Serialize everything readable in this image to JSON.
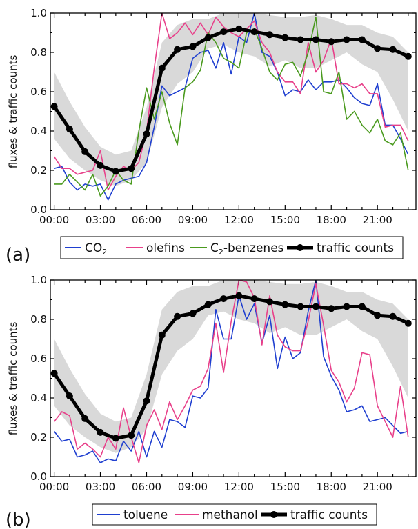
{
  "chart_data": [
    {
      "panel": "(a)",
      "type": "line",
      "ylabel": "fluxes & traffic counts",
      "ylim": [
        0,
        1.0
      ],
      "xlim": [
        -0.25,
        23.5
      ],
      "x_ticks": [
        "00:00",
        "03:00",
        "06:00",
        "09:00",
        "12:00",
        "15:00",
        "18:00",
        "21:00"
      ],
      "y_ticks": [
        "0.0",
        "0.2",
        "0.4",
        "0.6",
        "0.8",
        "1.0"
      ],
      "legend": [
        "CO",
        "olefins",
        "C",
        "-benzenes",
        "traffic counts"
      ],
      "legend_subscript": "2",
      "band": {
        "x": [
          0,
          1,
          2,
          3,
          4,
          5,
          6,
          7,
          8,
          9,
          10,
          11,
          12,
          13,
          14,
          15,
          16,
          17,
          18,
          19,
          20,
          21,
          22,
          23
        ],
        "upper": [
          0.7,
          0.55,
          0.42,
          0.32,
          0.28,
          0.3,
          0.52,
          0.85,
          0.94,
          0.97,
          0.97,
          1.0,
          1.0,
          1.0,
          0.99,
          0.98,
          0.98,
          0.99,
          0.97,
          0.94,
          0.94,
          0.9,
          0.88,
          0.8
        ],
        "lower": [
          0.36,
          0.26,
          0.2,
          0.15,
          0.12,
          0.15,
          0.24,
          0.52,
          0.64,
          0.7,
          0.82,
          0.84,
          0.8,
          0.78,
          0.73,
          0.76,
          0.72,
          0.72,
          0.76,
          0.8,
          0.74,
          0.7,
          0.56,
          0.4
        ]
      },
      "series": [
        {
          "name": "traffic counts",
          "color": "#000000",
          "style": "thick-markers",
          "x": [
            0,
            1,
            2,
            3,
            4,
            5,
            6,
            7,
            8,
            9,
            10,
            11,
            12,
            13,
            14,
            15,
            16,
            17,
            18,
            19,
            20,
            21,
            22,
            23
          ],
          "values": [
            0.525,
            0.41,
            0.295,
            0.225,
            0.195,
            0.21,
            0.385,
            0.72,
            0.815,
            0.83,
            0.875,
            0.905,
            0.92,
            0.905,
            0.89,
            0.875,
            0.865,
            0.865,
            0.855,
            0.865,
            0.865,
            0.82,
            0.815,
            0.78
          ]
        },
        {
          "name": "CO2",
          "color": "#1f3fd0",
          "style": "line",
          "x": [
            0,
            0.5,
            1,
            1.5,
            2,
            2.5,
            3,
            3.5,
            4,
            4.5,
            5,
            5.5,
            6,
            6.5,
            7,
            7.5,
            8,
            8.5,
            9,
            9.5,
            10,
            10.5,
            11,
            11.5,
            12,
            12.5,
            13,
            13.5,
            14,
            14.5,
            15,
            15.5,
            16,
            16.5,
            17,
            17.5,
            18,
            18.5,
            19,
            19.5,
            20,
            20.5,
            21,
            21.5,
            22,
            22.5,
            23
          ],
          "values": [
            0.21,
            0.22,
            0.14,
            0.1,
            0.13,
            0.12,
            0.13,
            0.05,
            0.13,
            0.15,
            0.16,
            0.17,
            0.24,
            0.42,
            0.63,
            0.58,
            0.6,
            0.62,
            0.77,
            0.8,
            0.81,
            0.72,
            0.85,
            0.69,
            0.88,
            0.85,
            1.0,
            0.8,
            0.78,
            0.7,
            0.58,
            0.61,
            0.6,
            0.66,
            0.61,
            0.65,
            0.65,
            0.66,
            0.62,
            0.57,
            0.54,
            0.53,
            0.64,
            0.43,
            0.43,
            0.36,
            0.28
          ]
        },
        {
          "name": "olefins",
          "color": "#e8408a",
          "style": "line",
          "x": [
            0,
            0.5,
            1,
            1.5,
            2,
            2.5,
            3,
            3.5,
            4,
            4.5,
            5,
            5.5,
            6,
            6.5,
            7,
            7.5,
            8,
            8.5,
            9,
            9.5,
            10,
            10.5,
            11,
            11.5,
            12,
            12.5,
            13,
            13.5,
            14,
            14.5,
            15,
            15.5,
            16,
            16.5,
            17,
            17.5,
            18,
            18.5,
            19,
            19.5,
            20,
            20.5,
            21,
            21.5,
            22,
            22.5,
            23
          ],
          "values": [
            0.27,
            0.21,
            0.21,
            0.18,
            0.19,
            0.2,
            0.3,
            0.1,
            0.17,
            0.22,
            0.2,
            0.24,
            0.4,
            0.72,
            1.0,
            0.87,
            0.9,
            0.95,
            0.89,
            0.95,
            0.89,
            0.98,
            0.93,
            0.9,
            0.88,
            0.92,
            0.96,
            0.85,
            0.8,
            0.7,
            0.65,
            0.65,
            0.59,
            0.85,
            0.7,
            0.76,
            0.87,
            0.64,
            0.64,
            0.62,
            0.64,
            0.59,
            0.59,
            0.42,
            0.43,
            0.43,
            0.35
          ]
        },
        {
          "name": "C2-benzenes",
          "color": "#4a9a1e",
          "style": "line",
          "x": [
            0,
            0.5,
            1,
            1.5,
            2,
            2.5,
            3,
            3.5,
            4,
            4.5,
            5,
            5.5,
            6,
            6.5,
            7,
            7.5,
            8,
            8.5,
            9,
            9.5,
            10,
            10.5,
            11,
            11.5,
            12,
            12.5,
            13,
            13.5,
            14,
            14.5,
            15,
            15.5,
            16,
            16.5,
            17,
            17.5,
            18,
            18.5,
            19,
            19.5,
            20,
            20.5,
            21,
            21.5,
            22,
            22.5,
            23
          ],
          "values": [
            0.13,
            0.13,
            0.18,
            0.14,
            0.1,
            0.18,
            0.07,
            0.12,
            0.2,
            0.15,
            0.13,
            0.4,
            0.62,
            0.46,
            0.6,
            0.44,
            0.33,
            0.62,
            0.65,
            0.71,
            0.9,
            0.85,
            0.77,
            0.75,
            0.72,
            0.9,
            0.92,
            0.82,
            0.7,
            0.66,
            0.74,
            0.75,
            0.68,
            0.8,
            0.98,
            0.6,
            0.59,
            0.7,
            0.46,
            0.5,
            0.43,
            0.39,
            0.46,
            0.35,
            0.33,
            0.39,
            0.2
          ]
        }
      ]
    },
    {
      "panel": "(b)",
      "type": "line",
      "ylabel": "fluxes & traffic counts",
      "ylim": [
        0,
        1.0
      ],
      "xlim": [
        -0.25,
        23.5
      ],
      "x_ticks": [
        "00:00",
        "03:00",
        "06:00",
        "09:00",
        "12:00",
        "15:00",
        "18:00",
        "21:00"
      ],
      "y_ticks": [
        "0.0",
        "0.2",
        "0.4",
        "0.6",
        "0.8",
        "1.0"
      ],
      "legend": [
        "toluene",
        "methanol",
        "traffic counts"
      ],
      "band": {
        "x": [
          0,
          1,
          2,
          3,
          4,
          5,
          6,
          7,
          8,
          9,
          10,
          11,
          12,
          13,
          14,
          15,
          16,
          17,
          18,
          19,
          20,
          21,
          22,
          23
        ],
        "upper": [
          0.7,
          0.55,
          0.42,
          0.32,
          0.28,
          0.3,
          0.52,
          0.85,
          0.94,
          0.97,
          0.97,
          1.0,
          1.0,
          1.0,
          0.99,
          0.98,
          0.98,
          0.99,
          0.97,
          0.94,
          0.94,
          0.9,
          0.88,
          0.8
        ],
        "lower": [
          0.36,
          0.26,
          0.2,
          0.15,
          0.12,
          0.15,
          0.24,
          0.52,
          0.64,
          0.7,
          0.82,
          0.84,
          0.8,
          0.78,
          0.73,
          0.76,
          0.72,
          0.72,
          0.76,
          0.8,
          0.74,
          0.7,
          0.56,
          0.4
        ]
      },
      "series": [
        {
          "name": "traffic counts",
          "color": "#000000",
          "style": "thick-markers",
          "x": [
            0,
            1,
            2,
            3,
            4,
            5,
            6,
            7,
            8,
            9,
            10,
            11,
            12,
            13,
            14,
            15,
            16,
            17,
            18,
            19,
            20,
            21,
            22,
            23
          ],
          "values": [
            0.525,
            0.41,
            0.295,
            0.225,
            0.195,
            0.21,
            0.385,
            0.72,
            0.815,
            0.83,
            0.875,
            0.905,
            0.92,
            0.905,
            0.89,
            0.875,
            0.865,
            0.865,
            0.855,
            0.865,
            0.865,
            0.82,
            0.815,
            0.78
          ]
        },
        {
          "name": "toluene",
          "color": "#1f3fd0",
          "style": "line",
          "x": [
            0,
            0.5,
            1,
            1.5,
            2,
            2.5,
            3,
            3.5,
            4,
            4.5,
            5,
            5.5,
            6,
            6.5,
            7,
            7.5,
            8,
            8.5,
            9,
            9.5,
            10,
            10.5,
            11,
            11.5,
            12,
            12.5,
            13,
            13.5,
            14,
            14.5,
            15,
            15.5,
            16,
            16.5,
            17,
            17.5,
            18,
            18.5,
            19,
            19.5,
            20,
            20.5,
            21,
            21.5,
            22,
            22.5,
            23
          ],
          "values": [
            0.23,
            0.18,
            0.19,
            0.1,
            0.11,
            0.13,
            0.07,
            0.09,
            0.08,
            0.18,
            0.13,
            0.23,
            0.1,
            0.23,
            0.15,
            0.29,
            0.28,
            0.25,
            0.41,
            0.4,
            0.45,
            0.85,
            0.7,
            0.7,
            0.92,
            0.8,
            0.88,
            0.68,
            0.82,
            0.55,
            0.71,
            0.6,
            0.63,
            0.84,
            1.0,
            0.61,
            0.51,
            0.44,
            0.33,
            0.34,
            0.36,
            0.28,
            0.29,
            0.3,
            0.26,
            0.22,
            0.23
          ]
        },
        {
          "name": "methanol",
          "color": "#e8408a",
          "style": "line",
          "x": [
            0,
            0.5,
            1,
            1.5,
            2,
            2.5,
            3,
            3.5,
            4,
            4.5,
            5,
            5.5,
            6,
            6.5,
            7,
            7.5,
            8,
            8.5,
            9,
            9.5,
            10,
            10.5,
            11,
            11.5,
            12,
            12.5,
            13,
            13.5,
            14,
            14.5,
            15,
            15.5,
            16,
            16.5,
            17,
            17.5,
            18,
            18.5,
            19,
            19.5,
            20,
            20.5,
            21,
            21.5,
            22,
            22.5,
            23
          ],
          "values": [
            0.28,
            0.33,
            0.31,
            0.14,
            0.17,
            0.14,
            0.1,
            0.2,
            0.14,
            0.35,
            0.2,
            0.07,
            0.26,
            0.34,
            0.24,
            0.38,
            0.29,
            0.36,
            0.44,
            0.46,
            0.55,
            0.78,
            0.53,
            0.79,
            1.0,
            0.99,
            0.91,
            0.67,
            0.92,
            0.72,
            0.66,
            0.64,
            0.64,
            0.79,
            0.98,
            0.77,
            0.54,
            0.48,
            0.38,
            0.45,
            0.63,
            0.62,
            0.36,
            0.28,
            0.2,
            0.46,
            0.2
          ]
        }
      ]
    }
  ],
  "legend_labels_a": {
    "co": "CO",
    "co_sub": "2",
    "olefins": "olefins",
    "c": "C",
    "c_sub": "2",
    "benzenes": "-benzenes",
    "traffic": "traffic counts"
  },
  "legend_labels_b": {
    "toluene": "toluene",
    "methanol": "methanol",
    "traffic": "traffic counts"
  },
  "panel_labels": {
    "a": "(a)",
    "b": "(b)"
  },
  "colors": {
    "band": "#d9d9d9",
    "blue": "#1f3fd0",
    "pink": "#e8408a",
    "green": "#4a9a1e",
    "black": "#000000"
  }
}
